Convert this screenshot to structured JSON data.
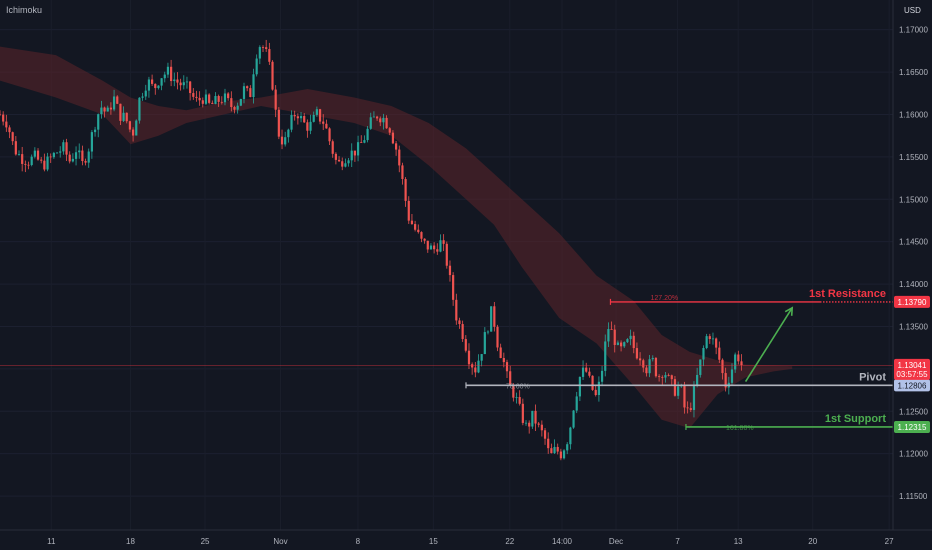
{
  "indicator_name": "Ichimoku",
  "currency": "USD",
  "chart_data": {
    "type": "candlestick",
    "instrument_hint": "EURUSD daily-style candles with Ichimoku cloud",
    "y_range": [
      1.111,
      1.1735
    ],
    "x_range": [
      0,
      1000
    ],
    "y_ticks": [
      "1.11500",
      "1.12000",
      "1.12500",
      "1.13000",
      "1.13500",
      "1.14000",
      "1.14500",
      "1.15000",
      "1.15500",
      "1.16000",
      "1.16500",
      "1.17000"
    ],
    "y_tick_values": [
      1.115,
      1.12,
      1.125,
      1.13,
      1.135,
      1.14,
      1.145,
      1.15,
      1.155,
      1.16,
      1.165,
      1.17
    ],
    "x_ticks": [
      {
        "label": "11",
        "x": 55
      },
      {
        "label": "18",
        "x": 140
      },
      {
        "label": "25",
        "x": 220
      },
      {
        "label": "Nov",
        "x": 301
      },
      {
        "label": "8",
        "x": 384
      },
      {
        "label": "15",
        "x": 465
      },
      {
        "label": "22",
        "x": 547
      },
      {
        "label": "14:00",
        "x": 603
      },
      {
        "label": "Dec",
        "x": 661
      },
      {
        "label": "7",
        "x": 727
      },
      {
        "label": "13",
        "x": 792
      },
      {
        "label": "20",
        "x": 872
      },
      {
        "label": "27",
        "x": 954
      }
    ],
    "close_path": [
      [
        0,
        1.16
      ],
      [
        8,
        1.159
      ],
      [
        15,
        1.156
      ],
      [
        22,
        1.155
      ],
      [
        30,
        1.1545
      ],
      [
        38,
        1.155
      ],
      [
        45,
        1.154
      ],
      [
        52,
        1.1545
      ],
      [
        60,
        1.1555
      ],
      [
        68,
        1.156
      ],
      [
        75,
        1.1545
      ],
      [
        82,
        1.156
      ],
      [
        88,
        1.154
      ],
      [
        95,
        1.156
      ],
      [
        102,
        1.159
      ],
      [
        108,
        1.161
      ],
      [
        115,
        1.16
      ],
      [
        122,
        1.162
      ],
      [
        128,
        1.16
      ],
      [
        135,
        1.1595
      ],
      [
        142,
        1.1575
      ],
      [
        150,
        1.162
      ],
      [
        158,
        1.164
      ],
      [
        165,
        1.163
      ],
      [
        172,
        1.1645
      ],
      [
        180,
        1.165
      ],
      [
        188,
        1.164
      ],
      [
        195,
        1.1635
      ],
      [
        202,
        1.163
      ],
      [
        210,
        1.1615
      ],
      [
        218,
        1.162
      ],
      [
        225,
        1.161
      ],
      [
        232,
        1.1615
      ],
      [
        240,
        1.162
      ],
      [
        248,
        1.161
      ],
      [
        256,
        1.1615
      ],
      [
        262,
        1.163
      ],
      [
        268,
        1.162
      ],
      [
        274,
        1.167
      ],
      [
        280,
        1.1685
      ],
      [
        286,
        1.167
      ],
      [
        292,
        1.164
      ],
      [
        298,
        1.158
      ],
      [
        305,
        1.1565
      ],
      [
        312,
        1.159
      ],
      [
        318,
        1.1605
      ],
      [
        325,
        1.159
      ],
      [
        332,
        1.1585
      ],
      [
        340,
        1.16
      ],
      [
        348,
        1.159
      ],
      [
        356,
        1.156
      ],
      [
        362,
        1.154
      ],
      [
        370,
        1.155
      ],
      [
        378,
        1.1555
      ],
      [
        385,
        1.156
      ],
      [
        392,
        1.1575
      ],
      [
        398,
        1.159
      ],
      [
        405,
        1.16
      ],
      [
        412,
        1.1595
      ],
      [
        418,
        1.1585
      ],
      [
        425,
        1.156
      ],
      [
        432,
        1.152
      ],
      [
        438,
        1.148
      ],
      [
        445,
        1.1465
      ],
      [
        452,
        1.145
      ],
      [
        458,
        1.1445
      ],
      [
        465,
        1.144
      ],
      [
        472,
        1.145
      ],
      [
        478,
        1.1435
      ],
      [
        485,
        1.139
      ],
      [
        490,
        1.136
      ],
      [
        497,
        1.134
      ],
      [
        504,
        1.131
      ],
      [
        510,
        1.13
      ],
      [
        516,
        1.132
      ],
      [
        522,
        1.1345
      ],
      [
        528,
        1.137
      ],
      [
        534,
        1.133
      ],
      [
        540,
        1.131
      ],
      [
        546,
        1.128
      ],
      [
        552,
        1.127
      ],
      [
        558,
        1.125
      ],
      [
        565,
        1.123
      ],
      [
        572,
        1.1245
      ],
      [
        578,
        1.123
      ],
      [
        584,
        1.122
      ],
      [
        590,
        1.1195
      ],
      [
        596,
        1.1205
      ],
      [
        602,
        1.12
      ],
      [
        610,
        1.122
      ],
      [
        616,
        1.126
      ],
      [
        622,
        1.129
      ],
      [
        628,
        1.13
      ],
      [
        634,
        1.128
      ],
      [
        640,
        1.1265
      ],
      [
        646,
        1.13
      ],
      [
        652,
        1.135
      ],
      [
        658,
        1.134
      ],
      [
        664,
        1.132
      ],
      [
        670,
        1.1325
      ],
      [
        676,
        1.1335
      ],
      [
        682,
        1.132
      ],
      [
        688,
        1.1315
      ],
      [
        694,
        1.13
      ],
      [
        700,
        1.131
      ],
      [
        706,
        1.129
      ],
      [
        712,
        1.13
      ],
      [
        718,
        1.1285
      ],
      [
        724,
        1.1275
      ],
      [
        730,
        1.128
      ],
      [
        736,
        1.1245
      ],
      [
        742,
        1.126
      ],
      [
        748,
        1.129
      ],
      [
        754,
        1.132
      ],
      [
        760,
        1.1345
      ],
      [
        766,
        1.133
      ],
      [
        772,
        1.131
      ],
      [
        778,
        1.128
      ],
      [
        784,
        1.1295
      ],
      [
        790,
        1.132
      ],
      [
        796,
        1.1304
      ]
    ],
    "cloud": {
      "upper": [
        [
          0,
          1.168
        ],
        [
          60,
          1.167
        ],
        [
          110,
          1.164
        ],
        [
          140,
          1.162
        ],
        [
          170,
          1.161
        ],
        [
          200,
          1.1605
        ],
        [
          240,
          1.1615
        ],
        [
          280,
          1.162
        ],
        [
          330,
          1.163
        ],
        [
          380,
          1.162
        ],
        [
          420,
          1.161
        ],
        [
          460,
          1.159
        ],
        [
          500,
          1.156
        ],
        [
          530,
          1.153
        ],
        [
          560,
          1.15
        ],
        [
          600,
          1.146
        ],
        [
          640,
          1.141
        ],
        [
          680,
          1.138
        ],
        [
          710,
          1.134
        ],
        [
          740,
          1.132
        ],
        [
          770,
          1.131
        ],
        [
          800,
          1.1305
        ],
        [
          830,
          1.1304
        ],
        [
          850,
          1.1303
        ]
      ],
      "lower": [
        [
          0,
          1.164
        ],
        [
          60,
          1.162
        ],
        [
          110,
          1.16
        ],
        [
          140,
          1.1565
        ],
        [
          170,
          1.1575
        ],
        [
          200,
          1.159
        ],
        [
          240,
          1.16
        ],
        [
          280,
          1.161
        ],
        [
          330,
          1.16
        ],
        [
          380,
          1.159
        ],
        [
          420,
          1.1575
        ],
        [
          460,
          1.154
        ],
        [
          500,
          1.15
        ],
        [
          530,
          1.147
        ],
        [
          560,
          1.142
        ],
        [
          600,
          1.136
        ],
        [
          640,
          1.133
        ],
        [
          680,
          1.128
        ],
        [
          710,
          1.124
        ],
        [
          740,
          1.123
        ],
        [
          770,
          1.127
        ],
        [
          800,
          1.129
        ],
        [
          830,
          1.1297
        ],
        [
          850,
          1.13
        ]
      ],
      "bearish_color": "#5c2529",
      "bullish_color": "#1f3a2e"
    },
    "levels": [
      {
        "name": "1st Resistance",
        "value": 1.1379,
        "label": "1.13790",
        "fib": "127.20%",
        "color": "#f23645",
        "x_start": 655,
        "style": "dotted-end"
      },
      {
        "name": "Pivot",
        "value": 1.12806,
        "label": "1.12806",
        "fib": "78.60%",
        "color": "#b2b5be",
        "x_start": 500,
        "style": "solid"
      },
      {
        "name": "1st Support",
        "value": 1.12315,
        "label": "1.12315",
        "fib": "161.80%",
        "color": "#4caf50",
        "x_start": 736,
        "style": "solid"
      }
    ],
    "current_price": {
      "value": 1.13041,
      "label": "1.13041",
      "countdown": "03:57:55",
      "color": "#f23645"
    },
    "arrow": {
      "from": [
        800,
        1.1285
      ],
      "to": [
        850,
        1.1372
      ],
      "color": "#4caf50"
    }
  }
}
